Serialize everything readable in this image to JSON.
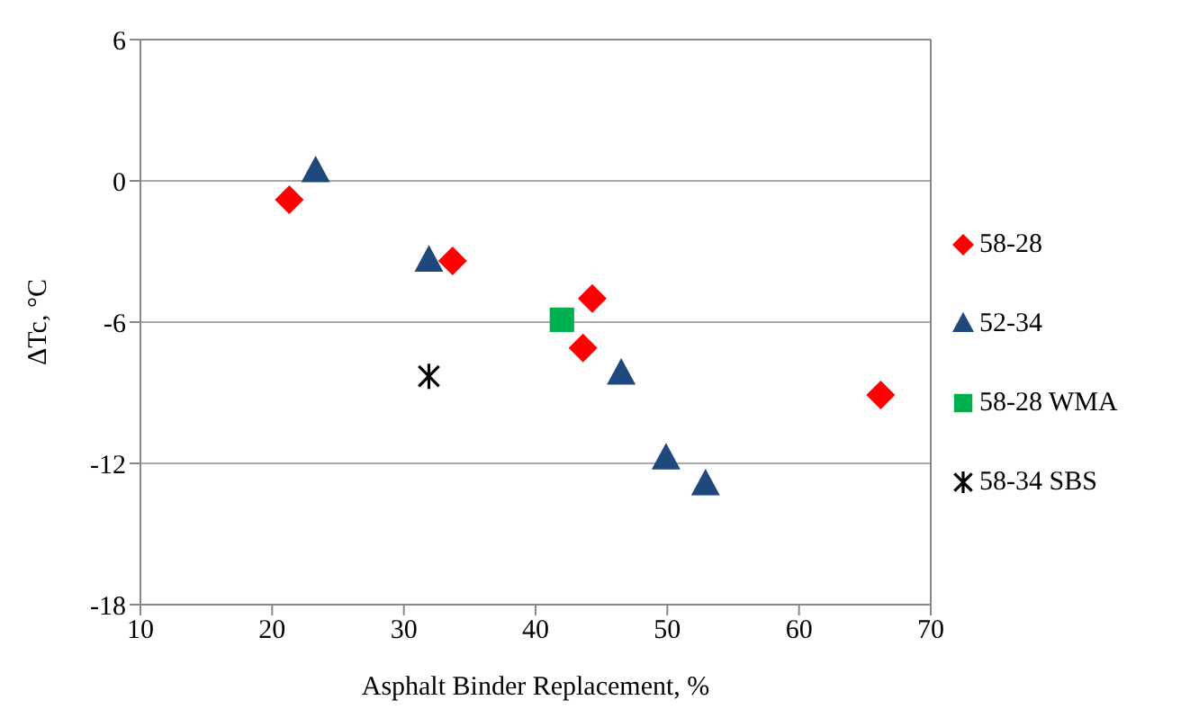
{
  "chart_data": {
    "type": "scatter",
    "xlabel": "Asphalt Binder Replacement, %",
    "ylabel": "ΔTc, °C",
    "xlim": [
      10,
      70
    ],
    "xticks": [
      10,
      20,
      30,
      40,
      50,
      60,
      70
    ],
    "ylim": [
      -18,
      6
    ],
    "yticks": [
      -18,
      -12,
      -6,
      0,
      6
    ],
    "grid": "y",
    "legend": "right",
    "series": [
      {
        "name": "58-28",
        "color": "#ff0000",
        "marker": "diamond",
        "x": [
          21.3,
          33.7,
          44.3,
          43.6,
          66.2
        ],
        "values": [
          -0.8,
          -3.4,
          -5.0,
          -7.1,
          -9.1
        ]
      },
      {
        "name": "52-34",
        "color": "#1f497d",
        "marker": "triangle",
        "x": [
          23.3,
          31.9,
          46.5,
          49.9,
          52.9
        ],
        "values": [
          0.4,
          -3.4,
          -8.2,
          -11.8,
          -12.9
        ]
      },
      {
        "name": "58-28 WMA",
        "color": "#00b050",
        "marker": "square",
        "x": [
          42.0
        ],
        "values": [
          -5.9
        ]
      },
      {
        "name": "58-34 SBS",
        "color": "#000000",
        "marker": "cross",
        "x": [
          31.9
        ],
        "values": [
          -8.3
        ]
      }
    ]
  }
}
